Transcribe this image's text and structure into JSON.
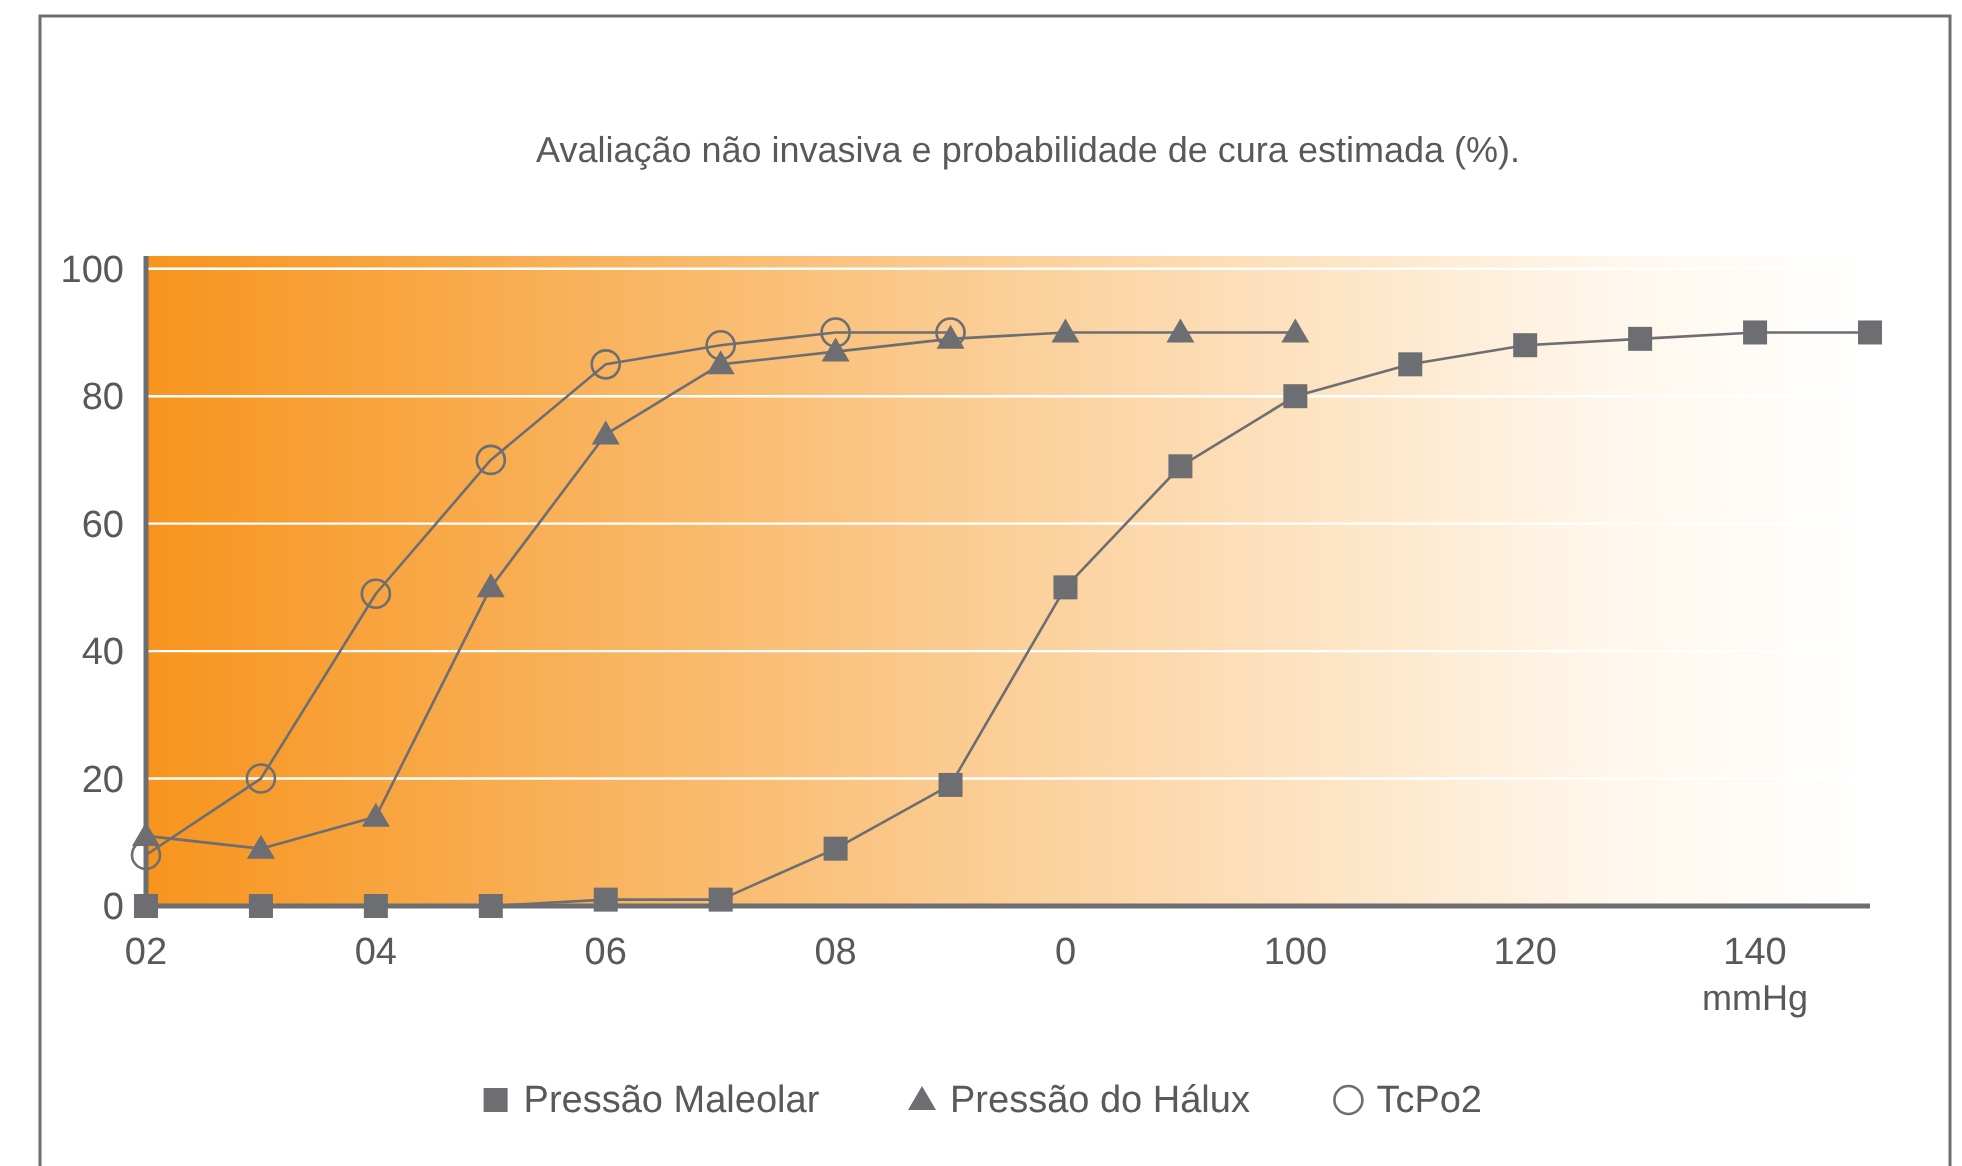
{
  "chart_data": {
    "type": "line",
    "title": "Avaliação não invasiva e probabilidade de cura estimada (%).",
    "xlabel": "mmHg",
    "categories": [
      "02",
      null,
      "04",
      null,
      "06",
      null,
      "08",
      null,
      "0",
      null,
      "100",
      null,
      "120",
      null,
      "140",
      null
    ],
    "ylim": [
      0,
      102
    ],
    "yticks": [
      0,
      20,
      40,
      60,
      80,
      100
    ],
    "grid": "y",
    "legend": "bottom",
    "series": [
      {
        "name": "Pressão Maleolar",
        "color": "#6d6e71",
        "marker": "square",
        "values": [
          0,
          0,
          0,
          0,
          1,
          1,
          9,
          19,
          50,
          69,
          80,
          85,
          88,
          89,
          90,
          90
        ]
      },
      {
        "name": "Pressão do Hálux",
        "color": "#6d6e71",
        "marker": "triangle",
        "values": [
          11,
          9,
          14,
          50,
          74,
          85,
          87,
          89,
          90,
          90,
          90,
          null,
          null,
          null,
          null,
          null
        ]
      },
      {
        "name": "TcPo2",
        "color": "#6d6e71",
        "marker": "circle",
        "values": [
          8,
          20,
          49,
          70,
          85,
          88,
          90,
          90,
          null,
          null,
          null,
          null,
          null,
          null,
          null,
          null
        ]
      }
    ]
  }
}
